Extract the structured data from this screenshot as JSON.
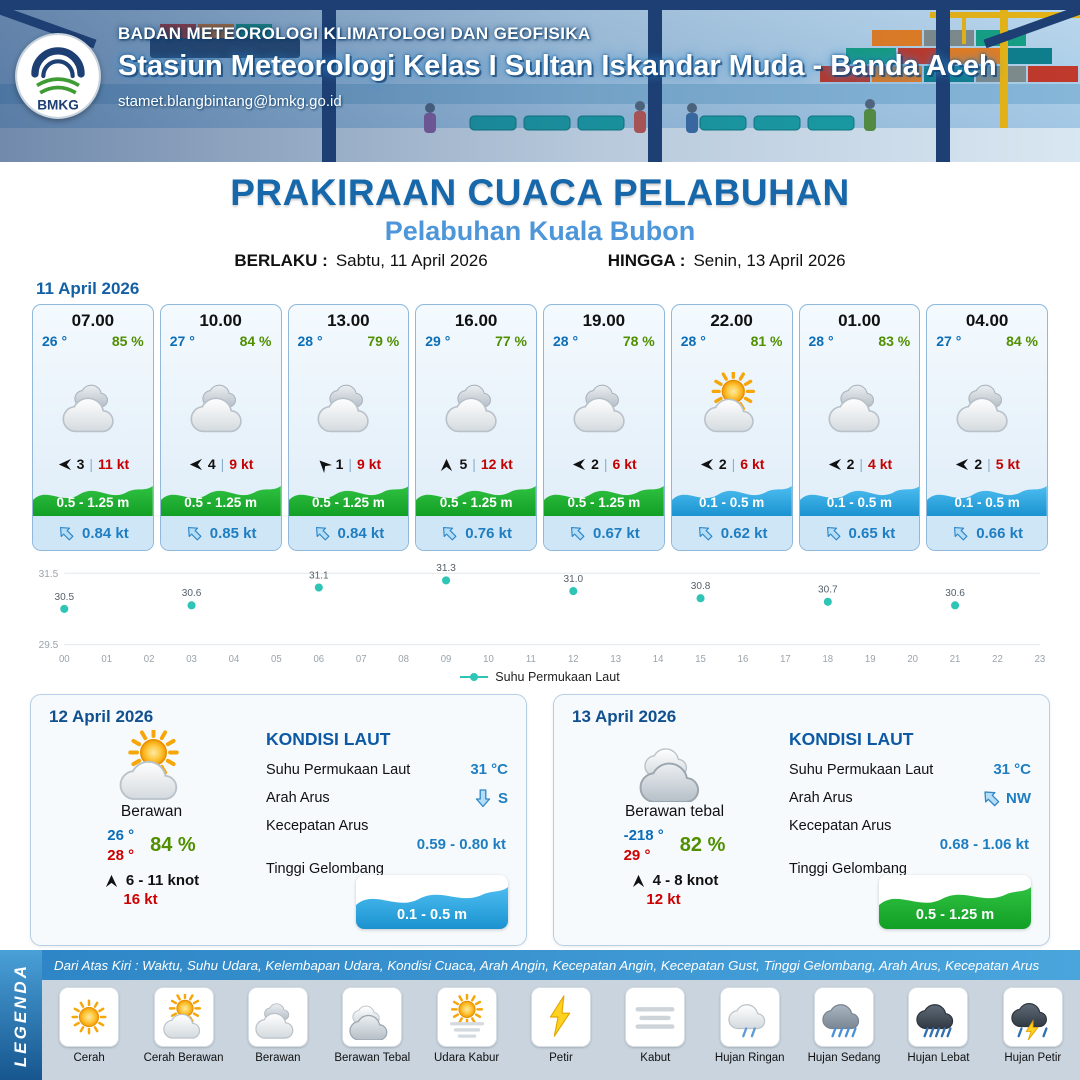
{
  "header": {
    "agency": "BADAN METEOROLOGI KLIMATOLOGI DAN GEOFISIKA",
    "station": "Stasiun Meteorologi Kelas I Sultan Iskandar Muda - Banda Aceh",
    "email": "stamet.blangbintang@bmkg.go.id",
    "logo_text": "BMKG"
  },
  "title": {
    "main": "PRAKIRAAN CUACA PELABUHAN",
    "sub": "Pelabuhan Kuala Bubon",
    "berlaku_label": "BERLAKU :",
    "berlaku_value": "Sabtu, 11 April 2026",
    "hingga_label": "HINGGA :",
    "hingga_value": "Senin, 13 April 2026"
  },
  "forecast": {
    "date": "11 April 2026",
    "cards": [
      {
        "time": "07.00",
        "temp": "26 °",
        "humidity": "85 %",
        "icon": "berawan",
        "wind_dir": "W",
        "wind_speed": "3",
        "gust": "11 kt",
        "wave": "0.5 - 1.25 m",
        "wave_color": "green",
        "current_dir": "NW",
        "current": "0.84 kt"
      },
      {
        "time": "10.00",
        "temp": "27 °",
        "humidity": "84 %",
        "icon": "berawan",
        "wind_dir": "W",
        "wind_speed": "4",
        "gust": "9 kt",
        "wave": "0.5 - 1.25 m",
        "wave_color": "green",
        "current_dir": "NW",
        "current": "0.85 kt"
      },
      {
        "time": "13.00",
        "temp": "28 °",
        "humidity": "79 %",
        "icon": "berawan",
        "wind_dir": "NW",
        "wind_speed": "1",
        "gust": "9 kt",
        "wave": "0.5 - 1.25 m",
        "wave_color": "green",
        "current_dir": "NW",
        "current": "0.84 kt"
      },
      {
        "time": "16.00",
        "temp": "29 °",
        "humidity": "77 %",
        "icon": "berawan",
        "wind_dir": "N",
        "wind_speed": "5",
        "gust": "12 kt",
        "wave": "0.5 - 1.25 m",
        "wave_color": "green",
        "current_dir": "NW",
        "current": "0.76 kt"
      },
      {
        "time": "19.00",
        "temp": "28 °",
        "humidity": "78 %",
        "icon": "berawan",
        "wind_dir": "W",
        "wind_speed": "2",
        "gust": "6 kt",
        "wave": "0.5 - 1.25 m",
        "wave_color": "green",
        "current_dir": "NW",
        "current": "0.67 kt"
      },
      {
        "time": "22.00",
        "temp": "28 °",
        "humidity": "81 %",
        "icon": "cerah-berawan",
        "wind_dir": "W",
        "wind_speed": "2",
        "gust": "6 kt",
        "wave": "0.1 - 0.5 m",
        "wave_color": "blue",
        "current_dir": "NW",
        "current": "0.62 kt"
      },
      {
        "time": "01.00",
        "temp": "28 °",
        "humidity": "83 %",
        "icon": "berawan",
        "wind_dir": "W",
        "wind_speed": "2",
        "gust": "4 kt",
        "wave": "0.1 - 0.5 m",
        "wave_color": "blue",
        "current_dir": "NW",
        "current": "0.65 kt"
      },
      {
        "time": "04.00",
        "temp": "27 °",
        "humidity": "84 %",
        "icon": "berawan",
        "wind_dir": "W",
        "wind_speed": "2",
        "gust": "5 kt",
        "wave": "0.1 - 0.5 m",
        "wave_color": "blue",
        "current_dir": "NW",
        "current": "0.66 kt"
      }
    ]
  },
  "chart_data": {
    "type": "scatter",
    "series": [
      {
        "name": "Suhu Permukaan Laut",
        "x": [
          0,
          3,
          6,
          9,
          12,
          15,
          18,
          21
        ],
        "values": [
          30.5,
          30.6,
          31.1,
          31.3,
          31.0,
          30.8,
          30.7,
          30.6
        ]
      }
    ],
    "x_ticks": [
      "00",
      "01",
      "02",
      "03",
      "04",
      "05",
      "06",
      "07",
      "08",
      "09",
      "10",
      "11",
      "12",
      "13",
      "14",
      "15",
      "16",
      "17",
      "18",
      "19",
      "20",
      "21",
      "22",
      "23"
    ],
    "y_ticks": [
      "31.5",
      "29.5"
    ],
    "ylim": [
      29.5,
      31.5
    ],
    "xlim": [
      0,
      23
    ],
    "legend": "Suhu Permukaan Laut",
    "legend_position": "bottom-center",
    "point_color": "#2ec4b6",
    "grid": true
  },
  "outlook_labels": {
    "sea_title": "KONDISI LAUT",
    "sst": "Suhu Permukaan Laut",
    "current_dir": "Arah Arus",
    "current_speed": "Kecepatan Arus",
    "wave": "Tinggi Gelombang"
  },
  "outlook": [
    {
      "date": "12 April 2026",
      "icon": "cerah-berawan",
      "condition": "Berawan",
      "temp_min": "26 °",
      "temp_max": "28 °",
      "humidity": "84 %",
      "wind_dir": "N",
      "wind_range": "6  - 11 knot",
      "gust": "16 kt",
      "sst": "31 °C",
      "current_dir": "S",
      "current_speed": "0.59  - 0.80 kt",
      "wave_value": "0.1 - 0.5 m",
      "wave_color": "blue"
    },
    {
      "date": "13 April 2026",
      "icon": "berawan-tebal",
      "condition": "Berawan tebal",
      "temp_min": "-218 °",
      "temp_max": "29 °",
      "humidity": "82 %",
      "wind_dir": "N",
      "wind_range": "4  - 8 knot",
      "gust": "12 kt",
      "sst": "31 °C",
      "current_dir": "NW",
      "current_speed": "0.68  - 1.06 kt",
      "wave_value": "0.5 - 1.25 m",
      "wave_color": "green"
    }
  ],
  "legend": {
    "title": "LEGENDA",
    "note": "Dari Atas Kiri : Waktu, Suhu Udara, Kelembapan Udara, Kondisi Cuaca, Arah Angin, Kecepatan Angin, Kecepatan Gust, Tinggi Gelombang, Arah Arus, Kecepatan Arus",
    "items": [
      {
        "label": "Cerah",
        "icon": "cerah"
      },
      {
        "label": "Cerah Berawan",
        "icon": "cerah-berawan"
      },
      {
        "label": "Berawan",
        "icon": "berawan"
      },
      {
        "label": "Berawan Tebal",
        "icon": "berawan-tebal"
      },
      {
        "label": "Udara Kabur",
        "icon": "udara-kabur"
      },
      {
        "label": "Petir",
        "icon": "petir"
      },
      {
        "label": "Kabut",
        "icon": "kabut"
      },
      {
        "label": "Hujan Ringan",
        "icon": "hujan-ringan"
      },
      {
        "label": "Hujan Sedang",
        "icon": "hujan-sedang"
      },
      {
        "label": "Hujan Lebat",
        "icon": "hujan-lebat"
      },
      {
        "label": "Hujan Petir",
        "icon": "hujan-petir"
      }
    ]
  }
}
